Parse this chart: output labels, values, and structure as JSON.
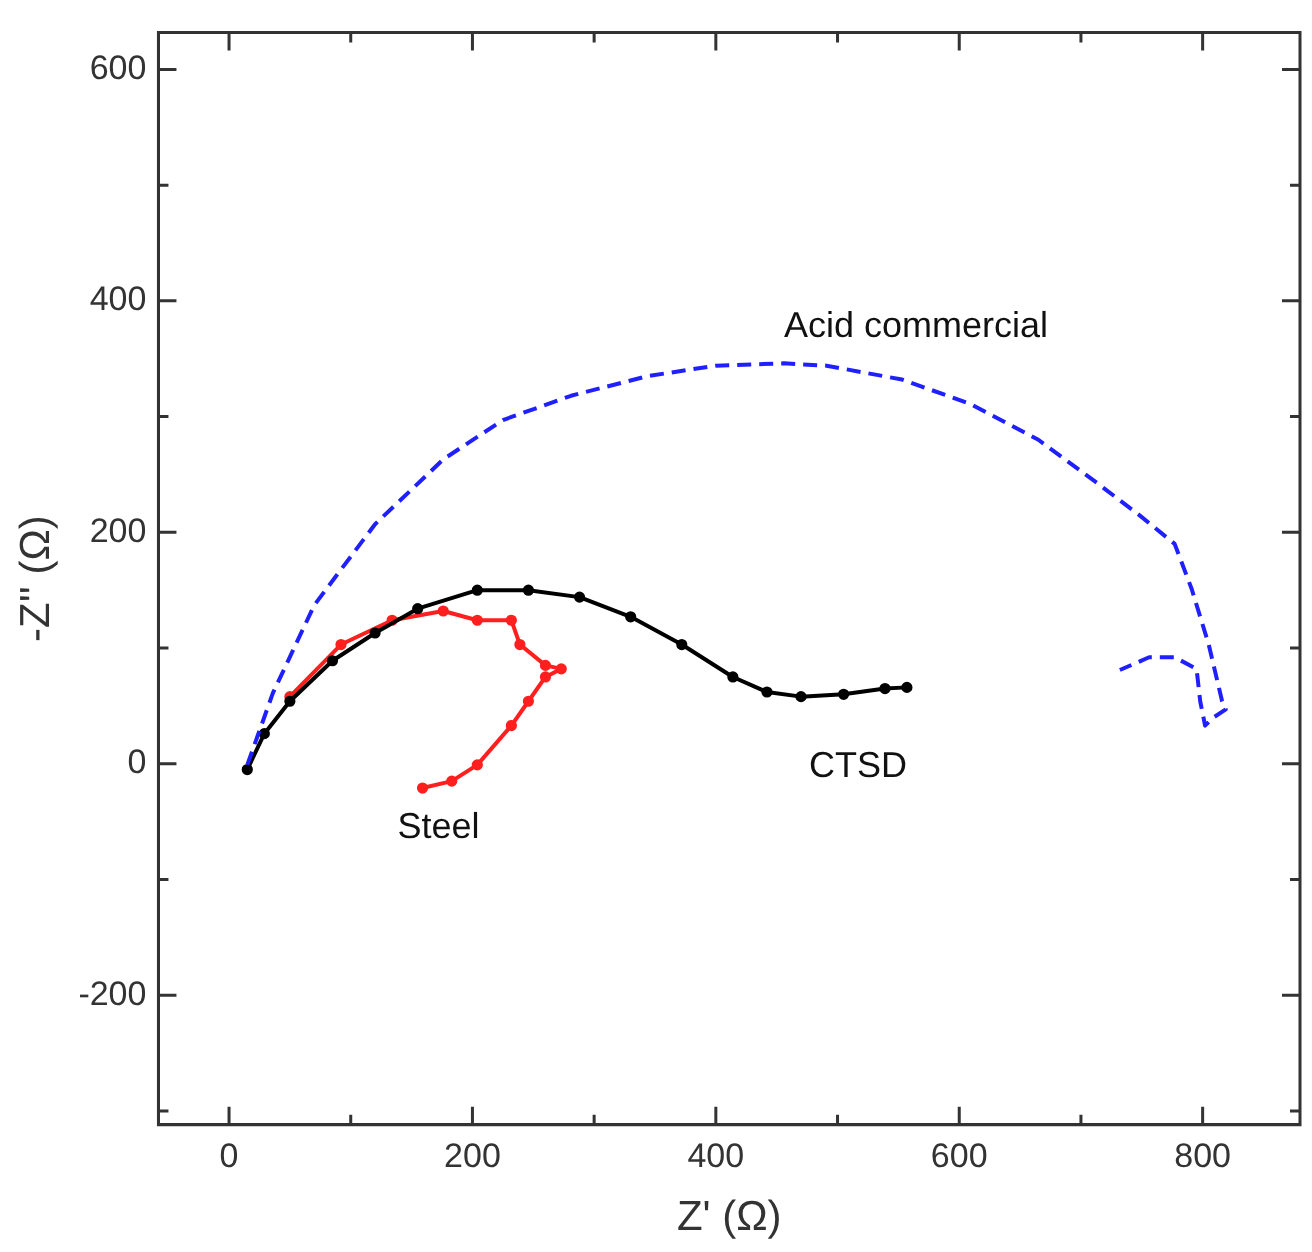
{
  "chart_data": {
    "type": "line",
    "xlabel": "Z' (Ω)",
    "ylabel": "-Z'' (Ω)",
    "xlim": [
      -58,
      880
    ],
    "ylim": [
      -312,
      632
    ],
    "xticks": [
      0,
      {
        "value": 100,
        "label": null
      },
      200,
      {
        "value": 300,
        "label": null
      },
      400,
      {
        "value": 500,
        "label": null
      },
      600,
      {
        "value": 700,
        "label": null
      },
      800
    ],
    "yticks": [
      {
        "value": -300,
        "label": null
      },
      -200,
      {
        "value": -100,
        "label": null
      },
      0,
      {
        "value": 100,
        "label": null
      },
      200,
      {
        "value": 300,
        "label": null
      },
      400,
      {
        "value": 500,
        "label": null
      },
      600
    ],
    "grid": false,
    "legend": false,
    "series": [
      {
        "name": "Acid commercial",
        "color": "#1f1fff",
        "line_style": "dashed",
        "marker": "none",
        "x": [
          15,
          36,
          70,
          120,
          176,
          225,
          281,
          344,
          400,
          456,
          491,
          553,
          609,
          665,
          714,
          749,
          777,
          791,
          805,
          816,
          819,
          809,
          802,
          798,
          795,
          777,
          756,
          732
        ],
        "values": [
          -1,
          61,
          137,
          207,
          263,
          297,
          318,
          335,
          344,
          346,
          344,
          332,
          311,
          280,
          242,
          214,
          190,
          151,
          103,
          54,
          47,
          40,
          33,
          54,
          82,
          92,
          92,
          81
        ]
      },
      {
        "name": "CTSD",
        "color": "#000000",
        "line_style": "solid",
        "marker": "circle",
        "x": [
          15,
          29,
          50,
          85,
          120,
          155,
          204,
          246,
          288,
          330,
          372,
          414,
          442,
          470,
          505,
          539,
          557
        ],
        "values": [
          -5,
          26,
          54,
          89,
          113,
          134,
          150,
          150,
          144,
          127,
          103,
          75,
          62,
          58,
          60,
          65,
          66
        ]
      },
      {
        "name": "Steel",
        "color": "#ff1f1f",
        "line_style": "solid",
        "marker": "circle",
        "x": [
          50,
          92,
          134,
          176,
          204,
          232,
          239,
          260,
          273,
          260,
          246,
          232,
          204,
          183,
          159
        ],
        "values": [
          58,
          103,
          124,
          132,
          124,
          124,
          103,
          85,
          82,
          75,
          54,
          33,
          -1,
          -15,
          -21
        ]
      }
    ]
  }
}
